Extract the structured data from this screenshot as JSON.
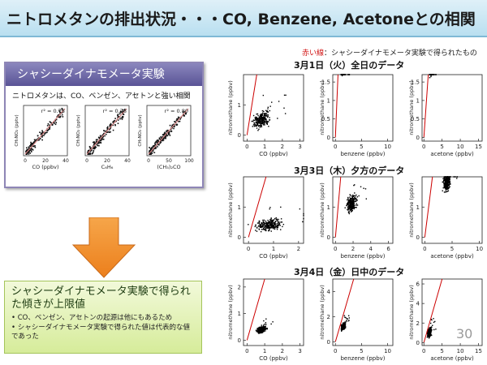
{
  "title": "ニトロメタンの排出状況・・・CO, Benzene, Acetoneとの相関",
  "note": {
    "red": "赤い線",
    "rest": "：シャシーダイナモメータ実験で得られたもの"
  },
  "sections": [
    {
      "heading": "3月1日（火）全日のデータ"
    },
    {
      "heading": "3月3日（木）夕方のデータ"
    },
    {
      "heading": "3月4日（金）日中のデータ"
    }
  ],
  "left_box": {
    "header": "シャシーダイナモメータ実験",
    "subtitle": "ニトロメタンは、CO、ベンゼン、アセトンと強い相関",
    "mini_plots": [
      {
        "r2": "r² = 0.73",
        "xlabel": "CO (ppbv)",
        "ylabel": "CH₃NO₂ (pptv)",
        "xticks": [
          "0",
          "20",
          "40"
        ]
      },
      {
        "r2": "r² = 0.78",
        "xlabel": "C₆H₆",
        "ylabel": "CH₃NO₂ (pptv)",
        "xticks": [
          "0",
          "20",
          "40"
        ]
      },
      {
        "r2": "r² = 0.80",
        "xlabel": "(CH₃)₂CO",
        "ylabel": "CH₃NO₂ (pptv)",
        "xticks": [
          "0",
          "50",
          "100"
        ]
      }
    ]
  },
  "bottom_box": {
    "heading": "シャシーダイナモメータ実験で得られた傾きが上限値",
    "bullets": [
      "• CO、ベンゼン、アセトンの起源は他にもあるため",
      "• シャシーダイナモメータ実験で得られた値は代表的な値であった"
    ]
  },
  "page_number": "30",
  "colors": {
    "fit_line": "#cc0000",
    "points": "#000000",
    "box_header": "#6a64a4"
  },
  "chart_data": [
    {
      "type": "scatter",
      "section": 0,
      "xlabel": "CO (ppbv)",
      "ylabel": "nitromethane (ppbv)",
      "xticks": [
        0,
        1,
        2,
        3
      ],
      "yticks": [
        0,
        1
      ],
      "xlim": [
        -0.2,
        3.2
      ],
      "ylim": [
        -0.2,
        2.0
      ],
      "line": [
        [
          0,
          0
        ],
        [
          0.55,
          2.0
        ]
      ],
      "blob": [
        0.8,
        0.5,
        0.5,
        0.3
      ]
    },
    {
      "type": "scatter",
      "section": 0,
      "xlabel": "benzene (ppbv)",
      "ylabel": "nitromethane (ppbv)",
      "xticks": [
        0,
        5,
        10
      ],
      "yticks": [
        0,
        0.5,
        1,
        1.5
      ],
      "xlim": [
        -0.5,
        11
      ],
      "ylim": [
        -0.1,
        1.7
      ],
      "line": [
        [
          0,
          0
        ],
        [
          0.5,
          1.7
        ]
      ],
      "blob": [
        1.5,
        0.4,
        2,
        0.3
      ]
    },
    {
      "type": "scatter",
      "section": 0,
      "xlabel": "acetone (ppbv)",
      "ylabel": "nitromethane (ppbv)",
      "xticks": [
        0,
        5,
        10,
        15
      ],
      "yticks": [
        0,
        0.5,
        1,
        1.5
      ],
      "xlim": [
        -0.5,
        16
      ],
      "ylim": [
        -0.1,
        1.7
      ],
      "line": [
        [
          0,
          0
        ],
        [
          1.2,
          1.7
        ]
      ],
      "blob": [
        2,
        0.45,
        2,
        0.3
      ]
    },
    {
      "type": "scatter",
      "section": 1,
      "xlabel": "CO (ppbv)",
      "ylabel": "nitromethane (ppbv)",
      "xticks": [
        0,
        1,
        2
      ],
      "yticks": [
        0,
        1
      ],
      "xlim": [
        -0.2,
        2.2
      ],
      "ylim": [
        -0.2,
        2.0
      ],
      "line": [
        [
          0,
          0
        ],
        [
          0.7,
          2.0
        ]
      ],
      "blob": [
        0.8,
        0.6,
        0.4,
        0.2
      ]
    },
    {
      "type": "scatter",
      "section": 1,
      "xlabel": "benzene (ppbv)",
      "ylabel": "nitromethane (ppbv)",
      "xticks": [
        0,
        2,
        4,
        6
      ],
      "yticks": [
        0,
        1
      ],
      "xlim": [
        -0.3,
        6.5
      ],
      "ylim": [
        -0.2,
        2.0
      ],
      "line": [
        [
          0,
          0
        ],
        [
          0.6,
          2.0
        ]
      ],
      "blob": [
        1.8,
        0.6,
        1.1,
        0.3
      ]
    },
    {
      "type": "scatter",
      "section": 1,
      "xlabel": "acetone (ppbv)",
      "ylabel": "nitromethane (ppbv)",
      "xticks": [
        0,
        5,
        10
      ],
      "yticks": [
        0,
        1
      ],
      "xlim": [
        -0.5,
        10.5
      ],
      "ylim": [
        -0.2,
        2.0
      ],
      "line": [
        [
          0,
          0
        ],
        [
          1.4,
          2.0
        ]
      ],
      "blob": [
        4,
        0.7,
        1.8,
        0.3
      ]
    },
    {
      "type": "scatter",
      "section": 2,
      "xlabel": "CO (ppbv)",
      "ylabel": "nitromethane (ppbv)",
      "xticks": [
        0,
        1,
        2,
        3
      ],
      "yticks": [
        0,
        1,
        2
      ],
      "xlim": [
        -0.2,
        3.2
      ],
      "ylim": [
        -0.2,
        2.3
      ],
      "line": [
        [
          0,
          0
        ],
        [
          1.0,
          2.3
        ]
      ],
      "blob": [
        0.8,
        0.3,
        0.4,
        0.15
      ]
    },
    {
      "type": "scatter",
      "section": 2,
      "xlabel": "benzene (ppbv)",
      "ylabel": "nitromethane (ppbv)",
      "xticks": [
        0,
        5,
        10
      ],
      "yticks": [
        0,
        2,
        4
      ],
      "xlim": [
        -0.5,
        11
      ],
      "ylim": [
        -0.3,
        5
      ],
      "line": [
        [
          0,
          0
        ],
        [
          3.5,
          5
        ]
      ],
      "blob": [
        1.5,
        0.4,
        1.2,
        0.3
      ]
    },
    {
      "type": "scatter",
      "section": 2,
      "xlabel": "acetone (ppbv)",
      "ylabel": "nitromethane (ppbv)",
      "xticks": [
        0,
        5,
        10,
        15
      ],
      "yticks": [
        0,
        2,
        4,
        6
      ],
      "xlim": [
        -0.5,
        16
      ],
      "ylim": [
        -0.3,
        6.5
      ],
      "line": [
        [
          0,
          0
        ],
        [
          5,
          6.5
        ]
      ],
      "blob": [
        1.5,
        0.6,
        1.0,
        0.5
      ]
    }
  ]
}
